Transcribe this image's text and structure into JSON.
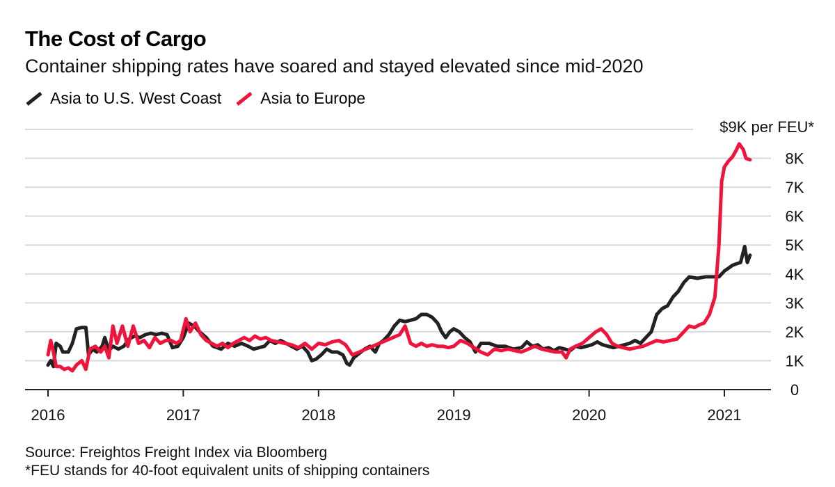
{
  "title": "The Cost of Cargo",
  "subtitle": "Container shipping rates have soared and stayed elevated since mid-2020",
  "legend": [
    {
      "name": "Asia to U.S. West Coast",
      "color": "#222222"
    },
    {
      "name": "Asia to Europe",
      "color": "#f0143c"
    }
  ],
  "footer": {
    "source": "Source: Freightos Freight Index via Bloomberg",
    "note": "*FEU stands for 40-foot equivalent units of shipping containers"
  },
  "chart_data": {
    "type": "line",
    "title": "The Cost of Cargo",
    "ylabel": "$9K per FEU*",
    "ylim": [
      0,
      9000
    ],
    "xlim": [
      2016.0,
      2021.35
    ],
    "y_ticks": [
      {
        "value": 0,
        "label": "0"
      },
      {
        "value": 1000,
        "label": "1K"
      },
      {
        "value": 2000,
        "label": "2K"
      },
      {
        "value": 3000,
        "label": "3K"
      },
      {
        "value": 4000,
        "label": "4K"
      },
      {
        "value": 5000,
        "label": "5K"
      },
      {
        "value": 6000,
        "label": "6K"
      },
      {
        "value": 7000,
        "label": "7K"
      },
      {
        "value": 8000,
        "label": "8K"
      }
    ],
    "top_label": "$9K per FEU*",
    "x_ticks": [
      {
        "value": 2016,
        "label": "2016"
      },
      {
        "value": 2017,
        "label": "2017"
      },
      {
        "value": 2018,
        "label": "2018"
      },
      {
        "value": 2019,
        "label": "2019"
      },
      {
        "value": 2020,
        "label": "2020"
      },
      {
        "value": 2021,
        "label": "2021"
      }
    ],
    "series": [
      {
        "name": "Asia to U.S. West Coast",
        "color": "#222222",
        "points": [
          [
            2016.0,
            850
          ],
          [
            2016.02,
            1000
          ],
          [
            2016.04,
            800
          ],
          [
            2016.06,
            1600
          ],
          [
            2016.09,
            1500
          ],
          [
            2016.11,
            1300
          ],
          [
            2016.15,
            1300
          ],
          [
            2016.18,
            1600
          ],
          [
            2016.21,
            2100
          ],
          [
            2016.25,
            2150
          ],
          [
            2016.28,
            2150
          ],
          [
            2016.3,
            1200
          ],
          [
            2016.33,
            1400
          ],
          [
            2016.36,
            1300
          ],
          [
            2016.4,
            1500
          ],
          [
            2016.42,
            1800
          ],
          [
            2016.45,
            1350
          ],
          [
            2016.48,
            1500
          ],
          [
            2016.52,
            1400
          ],
          [
            2016.56,
            1500
          ],
          [
            2016.6,
            1750
          ],
          [
            2016.64,
            1850
          ],
          [
            2016.68,
            1800
          ],
          [
            2016.72,
            1900
          ],
          [
            2016.76,
            1950
          ],
          [
            2016.8,
            1900
          ],
          [
            2016.84,
            1950
          ],
          [
            2016.88,
            1900
          ],
          [
            2016.92,
            1450
          ],
          [
            2016.96,
            1500
          ],
          [
            2017.0,
            1800
          ],
          [
            2017.04,
            2300
          ],
          [
            2017.08,
            2200
          ],
          [
            2017.12,
            2000
          ],
          [
            2017.17,
            1800
          ],
          [
            2017.22,
            1500
          ],
          [
            2017.28,
            1400
          ],
          [
            2017.33,
            1600
          ],
          [
            2017.38,
            1500
          ],
          [
            2017.43,
            1600
          ],
          [
            2017.48,
            1500
          ],
          [
            2017.52,
            1400
          ],
          [
            2017.56,
            1450
          ],
          [
            2017.6,
            1500
          ],
          [
            2017.64,
            1700
          ],
          [
            2017.68,
            1600
          ],
          [
            2017.72,
            1700
          ],
          [
            2017.76,
            1600
          ],
          [
            2017.8,
            1500
          ],
          [
            2017.84,
            1400
          ],
          [
            2017.88,
            1500
          ],
          [
            2017.92,
            1300
          ],
          [
            2017.95,
            1000
          ],
          [
            2017.98,
            1050
          ],
          [
            2018.02,
            1200
          ],
          [
            2018.06,
            1400
          ],
          [
            2018.1,
            1300
          ],
          [
            2018.14,
            1300
          ],
          [
            2018.18,
            1200
          ],
          [
            2018.21,
            900
          ],
          [
            2018.23,
            850
          ],
          [
            2018.26,
            1100
          ],
          [
            2018.3,
            1250
          ],
          [
            2018.34,
            1400
          ],
          [
            2018.38,
            1500
          ],
          [
            2018.42,
            1300
          ],
          [
            2018.45,
            1600
          ],
          [
            2018.48,
            1700
          ],
          [
            2018.52,
            1900
          ],
          [
            2018.56,
            2200
          ],
          [
            2018.6,
            2400
          ],
          [
            2018.64,
            2350
          ],
          [
            2018.68,
            2400
          ],
          [
            2018.72,
            2450
          ],
          [
            2018.76,
            2600
          ],
          [
            2018.8,
            2600
          ],
          [
            2018.84,
            2500
          ],
          [
            2018.88,
            2300
          ],
          [
            2018.91,
            2000
          ],
          [
            2018.94,
            1800
          ],
          [
            2018.97,
            2000
          ],
          [
            2019.0,
            2100
          ],
          [
            2019.04,
            2000
          ],
          [
            2019.08,
            1800
          ],
          [
            2019.12,
            1650
          ],
          [
            2019.16,
            1300
          ],
          [
            2019.2,
            1600
          ],
          [
            2019.26,
            1600
          ],
          [
            2019.32,
            1500
          ],
          [
            2019.38,
            1500
          ],
          [
            2019.44,
            1400
          ],
          [
            2019.5,
            1450
          ],
          [
            2019.54,
            1650
          ],
          [
            2019.58,
            1500
          ],
          [
            2019.62,
            1550
          ],
          [
            2019.66,
            1400
          ],
          [
            2019.7,
            1450
          ],
          [
            2019.74,
            1350
          ],
          [
            2019.78,
            1450
          ],
          [
            2019.82,
            1400
          ],
          [
            2019.86,
            1350
          ],
          [
            2019.9,
            1500
          ],
          [
            2019.94,
            1450
          ],
          [
            2019.98,
            1500
          ],
          [
            2020.02,
            1550
          ],
          [
            2020.06,
            1650
          ],
          [
            2020.1,
            1550
          ],
          [
            2020.14,
            1500
          ],
          [
            2020.18,
            1450
          ],
          [
            2020.22,
            1500
          ],
          [
            2020.26,
            1550
          ],
          [
            2020.3,
            1600
          ],
          [
            2020.34,
            1700
          ],
          [
            2020.38,
            1600
          ],
          [
            2020.42,
            1800
          ],
          [
            2020.46,
            2000
          ],
          [
            2020.5,
            2600
          ],
          [
            2020.54,
            2800
          ],
          [
            2020.58,
            2900
          ],
          [
            2020.62,
            3200
          ],
          [
            2020.66,
            3400
          ],
          [
            2020.7,
            3700
          ],
          [
            2020.74,
            3900
          ],
          [
            2020.8,
            3850
          ],
          [
            2020.86,
            3900
          ],
          [
            2020.92,
            3900
          ],
          [
            2020.96,
            3900
          ],
          [
            2021.0,
            4100
          ],
          [
            2021.03,
            4200
          ],
          [
            2021.06,
            4300
          ],
          [
            2021.09,
            4350
          ],
          [
            2021.12,
            4400
          ],
          [
            2021.15,
            4950
          ],
          [
            2021.17,
            4400
          ],
          [
            2021.19,
            4650
          ]
        ]
      },
      {
        "name": "Asia to Europe",
        "color": "#f0143c",
        "points": [
          [
            2016.0,
            1200
          ],
          [
            2016.02,
            1700
          ],
          [
            2016.04,
            1300
          ],
          [
            2016.06,
            800
          ],
          [
            2016.09,
            800
          ],
          [
            2016.12,
            700
          ],
          [
            2016.15,
            750
          ],
          [
            2016.18,
            650
          ],
          [
            2016.21,
            850
          ],
          [
            2016.25,
            1000
          ],
          [
            2016.28,
            700
          ],
          [
            2016.31,
            1400
          ],
          [
            2016.35,
            1500
          ],
          [
            2016.39,
            1300
          ],
          [
            2016.42,
            1500
          ],
          [
            2016.45,
            1100
          ],
          [
            2016.48,
            2200
          ],
          [
            2016.51,
            1600
          ],
          [
            2016.55,
            2200
          ],
          [
            2016.59,
            1500
          ],
          [
            2016.63,
            2200
          ],
          [
            2016.67,
            1600
          ],
          [
            2016.71,
            1700
          ],
          [
            2016.75,
            1450
          ],
          [
            2016.79,
            1800
          ],
          [
            2016.83,
            1600
          ],
          [
            2016.87,
            1700
          ],
          [
            2016.91,
            1700
          ],
          [
            2016.95,
            1600
          ],
          [
            2016.98,
            1700
          ],
          [
            2017.02,
            2450
          ],
          [
            2017.05,
            2000
          ],
          [
            2017.09,
            2300
          ],
          [
            2017.13,
            1900
          ],
          [
            2017.17,
            1700
          ],
          [
            2017.21,
            1600
          ],
          [
            2017.25,
            1500
          ],
          [
            2017.29,
            1600
          ],
          [
            2017.33,
            1450
          ],
          [
            2017.37,
            1600
          ],
          [
            2017.41,
            1700
          ],
          [
            2017.45,
            1800
          ],
          [
            2017.49,
            1700
          ],
          [
            2017.53,
            1850
          ],
          [
            2017.57,
            1750
          ],
          [
            2017.61,
            1800
          ],
          [
            2017.65,
            1700
          ],
          [
            2017.7,
            1650
          ],
          [
            2017.75,
            1600
          ],
          [
            2017.8,
            1550
          ],
          [
            2017.85,
            1450
          ],
          [
            2017.9,
            1600
          ],
          [
            2017.95,
            1400
          ],
          [
            2018.0,
            1600
          ],
          [
            2018.05,
            1550
          ],
          [
            2018.1,
            1650
          ],
          [
            2018.15,
            1700
          ],
          [
            2018.2,
            1550
          ],
          [
            2018.25,
            1200
          ],
          [
            2018.3,
            1300
          ],
          [
            2018.35,
            1400
          ],
          [
            2018.4,
            1500
          ],
          [
            2018.45,
            1600
          ],
          [
            2018.5,
            1700
          ],
          [
            2018.55,
            1800
          ],
          [
            2018.6,
            1900
          ],
          [
            2018.64,
            2200
          ],
          [
            2018.68,
            1600
          ],
          [
            2018.72,
            1500
          ],
          [
            2018.76,
            1600
          ],
          [
            2018.8,
            1500
          ],
          [
            2018.84,
            1550
          ],
          [
            2018.88,
            1500
          ],
          [
            2018.92,
            1500
          ],
          [
            2018.96,
            1450
          ],
          [
            2019.0,
            1500
          ],
          [
            2019.05,
            1700
          ],
          [
            2019.1,
            1600
          ],
          [
            2019.15,
            1450
          ],
          [
            2019.2,
            1300
          ],
          [
            2019.25,
            1200
          ],
          [
            2019.3,
            1400
          ],
          [
            2019.35,
            1350
          ],
          [
            2019.4,
            1400
          ],
          [
            2019.45,
            1350
          ],
          [
            2019.5,
            1300
          ],
          [
            2019.55,
            1400
          ],
          [
            2019.6,
            1500
          ],
          [
            2019.65,
            1400
          ],
          [
            2019.7,
            1350
          ],
          [
            2019.75,
            1300
          ],
          [
            2019.8,
            1300
          ],
          [
            2019.83,
            1100
          ],
          [
            2019.86,
            1400
          ],
          [
            2019.9,
            1500
          ],
          [
            2019.95,
            1600
          ],
          [
            2020.0,
            1800
          ],
          [
            2020.05,
            2000
          ],
          [
            2020.09,
            2100
          ],
          [
            2020.13,
            1900
          ],
          [
            2020.17,
            1600
          ],
          [
            2020.21,
            1500
          ],
          [
            2020.25,
            1450
          ],
          [
            2020.3,
            1400
          ],
          [
            2020.35,
            1450
          ],
          [
            2020.4,
            1500
          ],
          [
            2020.45,
            1600
          ],
          [
            2020.5,
            1700
          ],
          [
            2020.55,
            1650
          ],
          [
            2020.6,
            1700
          ],
          [
            2020.65,
            1750
          ],
          [
            2020.7,
            2000
          ],
          [
            2020.74,
            2200
          ],
          [
            2020.78,
            2150
          ],
          [
            2020.82,
            2250
          ],
          [
            2020.85,
            2300
          ],
          [
            2020.89,
            2600
          ],
          [
            2020.93,
            3200
          ],
          [
            2020.96,
            5000
          ],
          [
            2020.98,
            7200
          ],
          [
            2021.0,
            7700
          ],
          [
            2021.03,
            7900
          ],
          [
            2021.06,
            8050
          ],
          [
            2021.09,
            8300
          ],
          [
            2021.11,
            8500
          ],
          [
            2021.14,
            8300
          ],
          [
            2021.16,
            8000
          ],
          [
            2021.19,
            7950
          ]
        ]
      }
    ]
  }
}
